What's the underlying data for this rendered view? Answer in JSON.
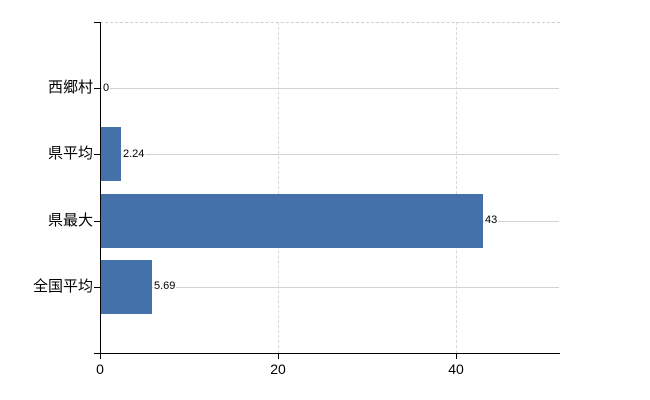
{
  "chart_data": {
    "type": "bar",
    "orientation": "horizontal",
    "title": "",
    "xlabel": "",
    "ylabel": "",
    "categories": [
      "西郷村",
      "県平均",
      "県最大",
      "全国平均"
    ],
    "values": [
      0,
      2.24,
      43,
      5.69
    ],
    "value_labels": [
      "0",
      "2.24",
      "43",
      "5.69"
    ],
    "x_ticks": [
      0,
      20,
      40
    ],
    "x_tick_labels": [
      "0",
      "20",
      "40"
    ],
    "xlim": [
      0,
      51.6
    ],
    "grid": true,
    "gridline_style_horizontal": "solid",
    "gridline_style_vertical": "dashed",
    "legend": false,
    "colors": {
      "bar": "#4471aa",
      "h_gridline": "#ccd6cc",
      "v_gridline": "#d8d8d8",
      "axis": "#000000",
      "plot_top_border": "#cfcfcf",
      "background": "#ffffff",
      "text": "#000000"
    }
  }
}
